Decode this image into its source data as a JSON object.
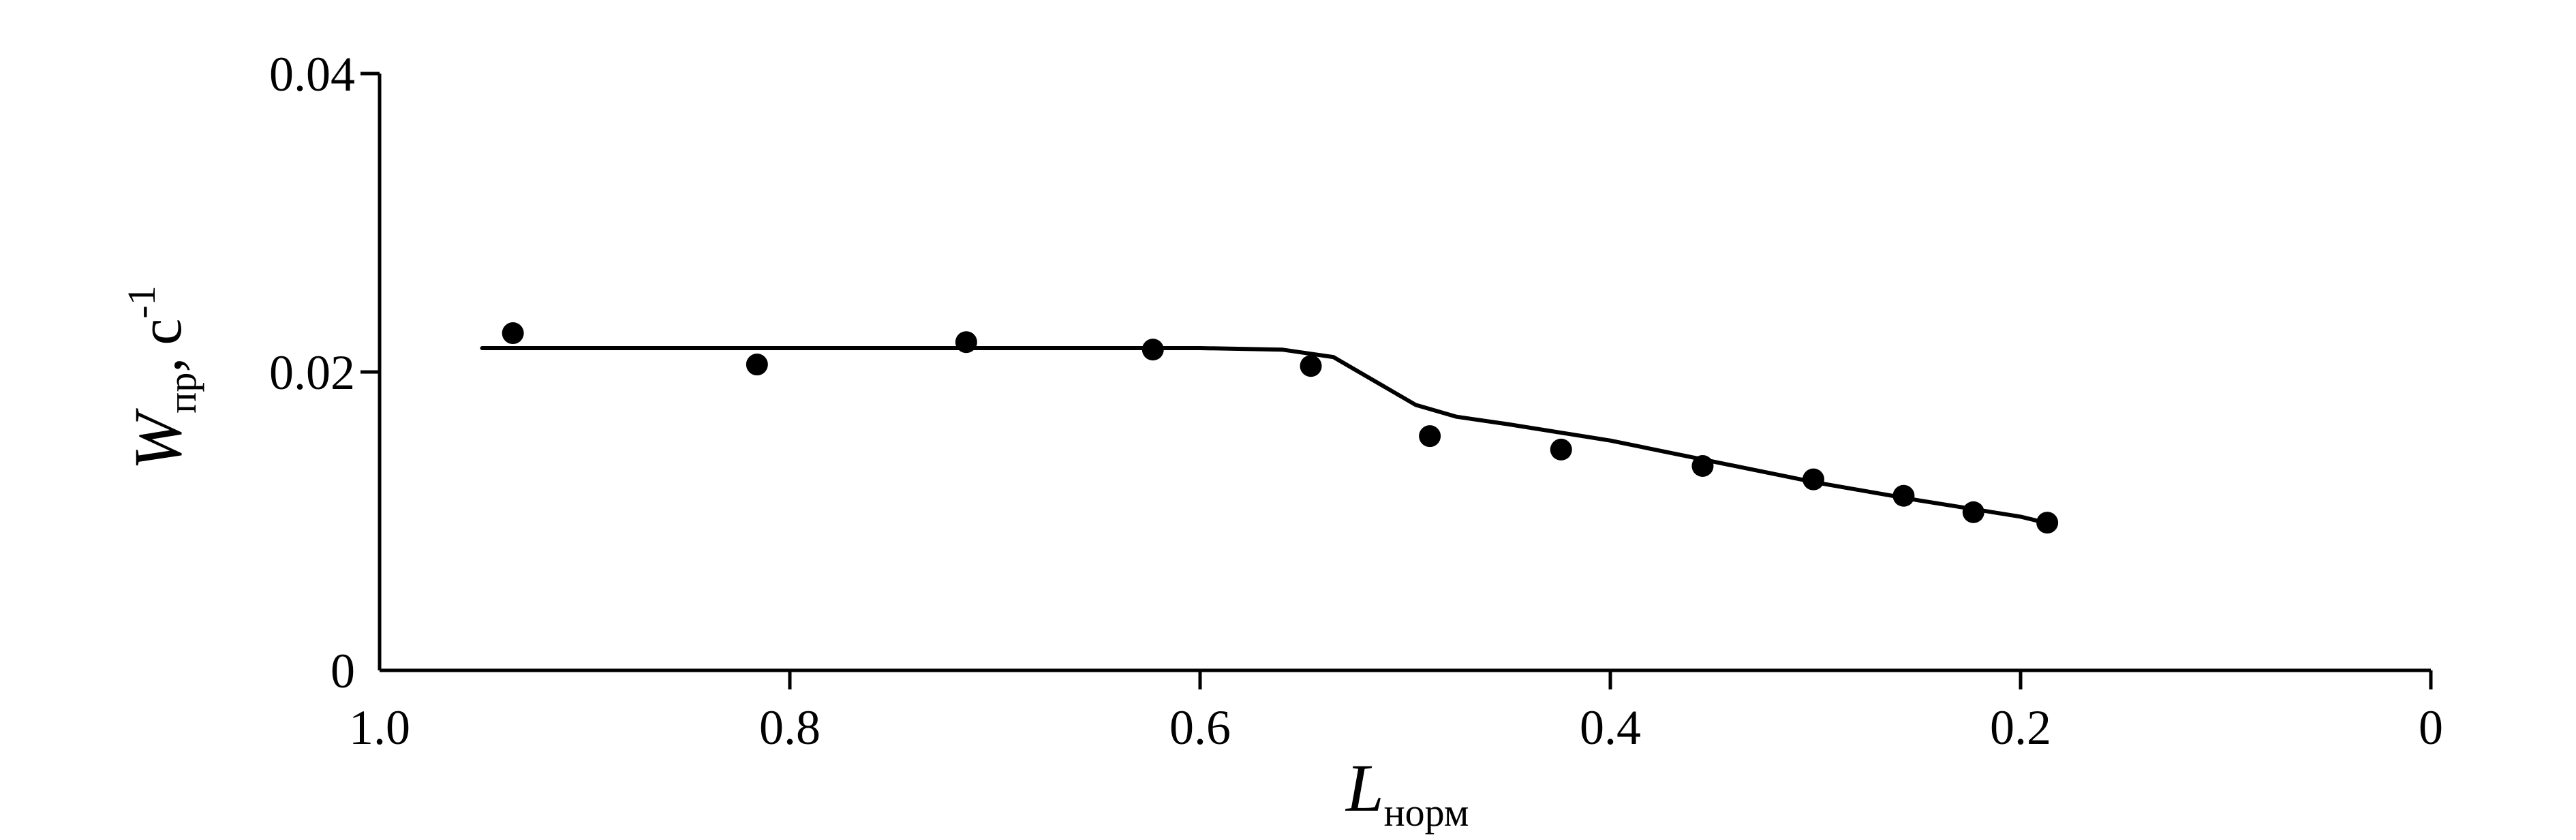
{
  "chart_data": {
    "type": "scatter",
    "title": "",
    "xlabel": {
      "main": "L",
      "subscript": "норм"
    },
    "ylabel": {
      "main": "W",
      "subscript": "пр",
      "separator": ",",
      "unit": "с",
      "unit_superscript": "-1"
    },
    "xlim": [
      1.0,
      0.0
    ],
    "ylim": [
      0.0,
      0.04
    ],
    "x_ticks": [
      {
        "value": 1.0,
        "label": "1.0"
      },
      {
        "value": 0.8,
        "label": "0.8"
      },
      {
        "value": 0.6,
        "label": "0.6"
      },
      {
        "value": 0.4,
        "label": "0.4"
      },
      {
        "value": 0.2,
        "label": "0.2"
      },
      {
        "value": 0.0,
        "label": "0"
      }
    ],
    "y_ticks": [
      {
        "value": 0.0,
        "label": "0"
      },
      {
        "value": 0.02,
        "label": "0.02"
      },
      {
        "value": 0.04,
        "label": "0.04"
      }
    ],
    "grid": false,
    "legend": "none",
    "points": [
      {
        "x": 0.935,
        "y": 0.0226
      },
      {
        "x": 0.816,
        "y": 0.0205
      },
      {
        "x": 0.714,
        "y": 0.022
      },
      {
        "x": 0.623,
        "y": 0.0215
      },
      {
        "x": 0.546,
        "y": 0.0204
      },
      {
        "x": 0.488,
        "y": 0.0157
      },
      {
        "x": 0.424,
        "y": 0.0148
      },
      {
        "x": 0.355,
        "y": 0.0137
      },
      {
        "x": 0.301,
        "y": 0.0128
      },
      {
        "x": 0.257,
        "y": 0.0117
      },
      {
        "x": 0.223,
        "y": 0.0106
      },
      {
        "x": 0.187,
        "y": 0.0099
      }
    ],
    "fit_curve": [
      {
        "x": 0.95,
        "y": 0.0216
      },
      {
        "x": 0.8,
        "y": 0.0216
      },
      {
        "x": 0.6,
        "y": 0.0216
      },
      {
        "x": 0.56,
        "y": 0.0215
      },
      {
        "x": 0.535,
        "y": 0.021
      },
      {
        "x": 0.515,
        "y": 0.0194
      },
      {
        "x": 0.495,
        "y": 0.0178
      },
      {
        "x": 0.475,
        "y": 0.017
      },
      {
        "x": 0.45,
        "y": 0.0165
      },
      {
        "x": 0.4,
        "y": 0.0154
      },
      {
        "x": 0.35,
        "y": 0.014
      },
      {
        "x": 0.3,
        "y": 0.0126
      },
      {
        "x": 0.25,
        "y": 0.0114
      },
      {
        "x": 0.2,
        "y": 0.0103
      },
      {
        "x": 0.185,
        "y": 0.0098
      }
    ]
  }
}
